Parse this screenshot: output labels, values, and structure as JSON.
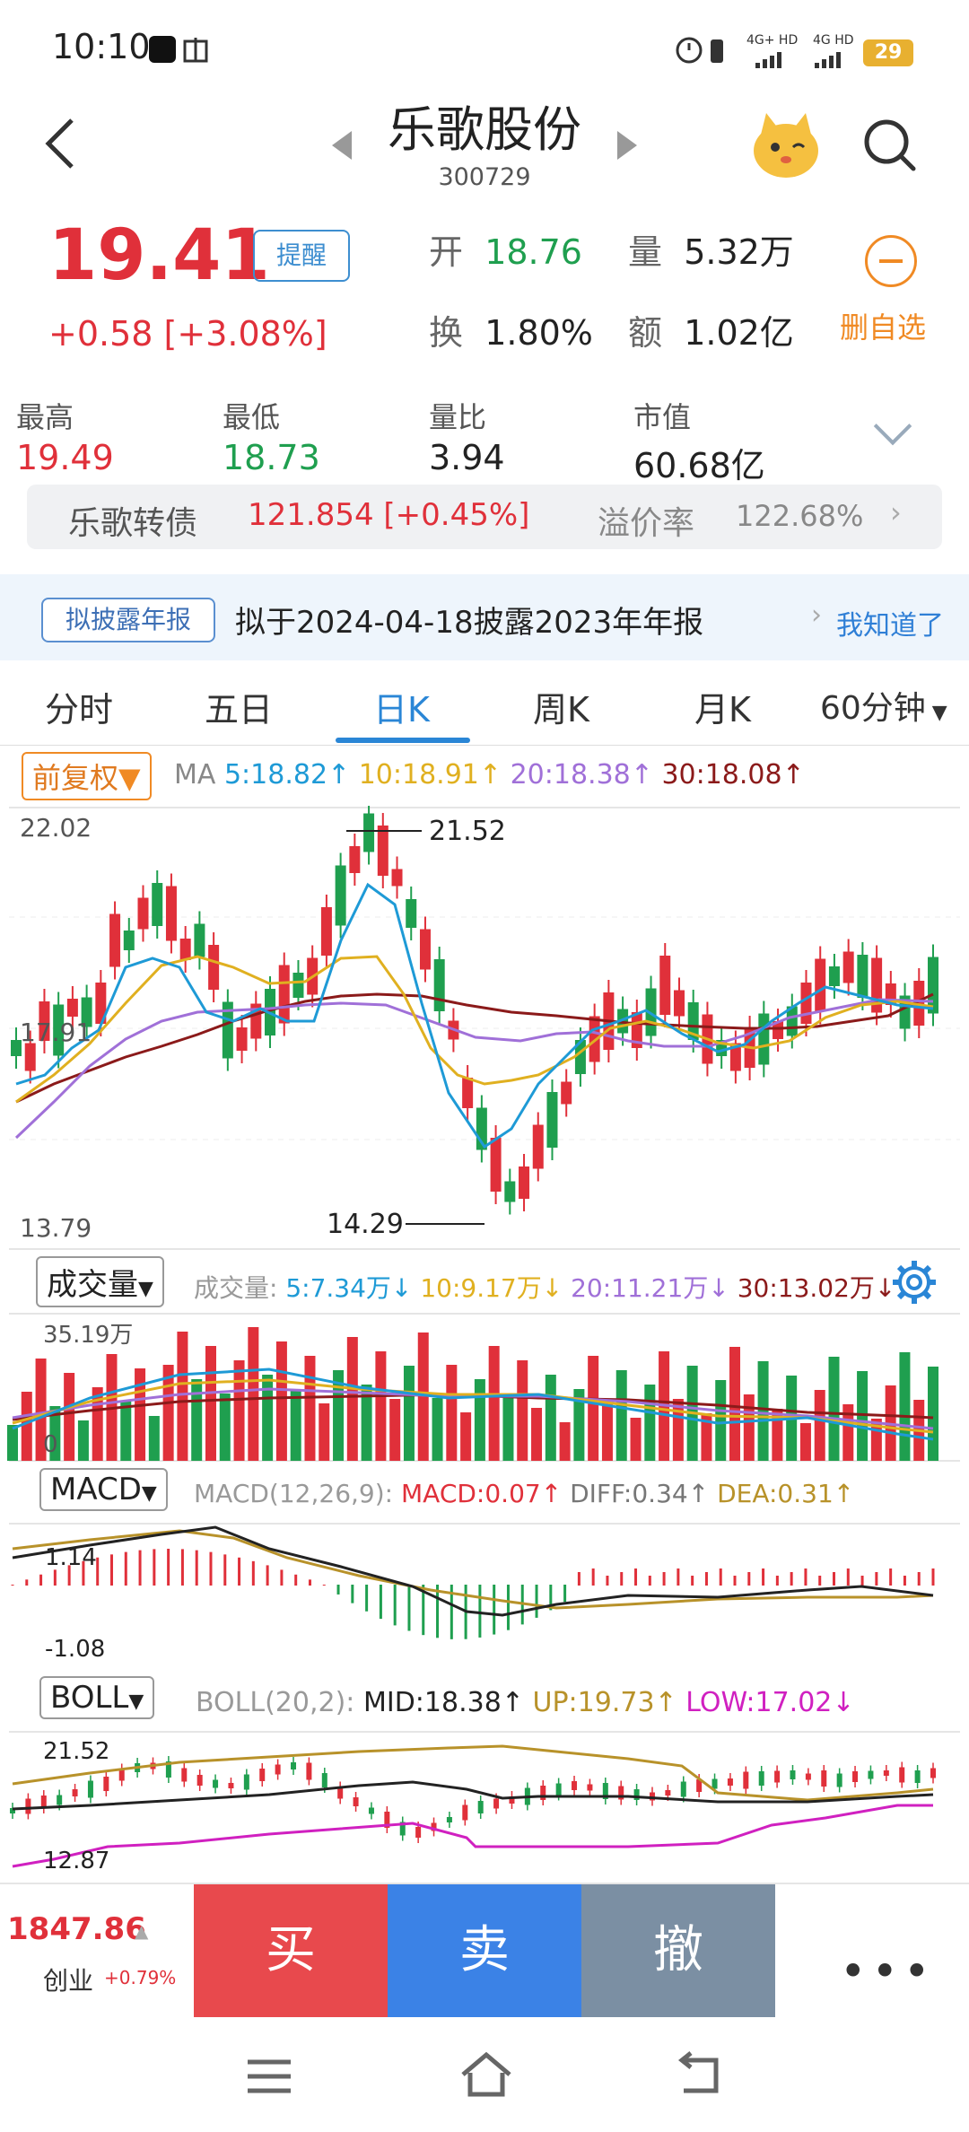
{
  "status_bar": {
    "time": "10:10",
    "network1": "4G+ HD",
    "network2": "4G HD",
    "battery": "29"
  },
  "header": {
    "title": "乐歌股份",
    "code": "300729"
  },
  "quote": {
    "price": "19.41",
    "remind_label": "提醒",
    "change": "+0.58  [+3.08%]",
    "open_label": "开",
    "open_value": "18.76",
    "volume_label": "量",
    "volume_value": "5.32万",
    "turnover_label": "换",
    "turnover_value": "1.80%",
    "amount_label": "额",
    "amount_value": "1.02亿",
    "remove_label": "删自选"
  },
  "stats": [
    {
      "label": "最高",
      "value": "19.49",
      "tone": "red"
    },
    {
      "label": "最低",
      "value": "18.73",
      "tone": "green"
    },
    {
      "label": "量比",
      "value": "3.94",
      "tone": "plain"
    },
    {
      "label": "市值",
      "value": "60.68亿",
      "tone": "plain"
    }
  ],
  "convertible": {
    "name": "乐歌转债",
    "price_change": "121.854  [+0.45%]",
    "premium_label": "溢价率",
    "premium_value": "122.68%"
  },
  "notice": {
    "badge": "拟披露年报",
    "text": "拟于2024-04-18披露2023年年报",
    "ack": "我知道了"
  },
  "tabs": [
    "分时",
    "五日",
    "日K",
    "周K",
    "月K",
    "60分钟"
  ],
  "active_tab": 2,
  "kline": {
    "adjust_label": "前复权",
    "ma_prefix": "MA",
    "ma": [
      {
        "text": "5:18.82↑",
        "color": "#1e9ad6"
      },
      {
        "text": "10:18.91↑",
        "color": "#e0b020"
      },
      {
        "text": "20:18.38↑",
        "color": "#a070d8"
      },
      {
        "text": "30:18.08↑",
        "color": "#8b1a1a"
      }
    ],
    "ymax": "22.02",
    "ymid": "17.91",
    "ymin": "13.79",
    "high_mark": "21.52",
    "low_mark": "14.29"
  },
  "volume": {
    "selector": "成交量",
    "prefix": "成交量:",
    "items": [
      {
        "text": "5:7.34万↓",
        "color": "#1e9ad6"
      },
      {
        "text": "10:9.17万↓",
        "color": "#e0b020"
      },
      {
        "text": "20:11.21万↓",
        "color": "#a070d8"
      },
      {
        "text": "30:13.02万↓",
        "color": "#8b1a1a"
      }
    ],
    "ymax": "35.19万",
    "ymin": "0"
  },
  "macd": {
    "selector": "MACD",
    "params": "MACD(12,26,9):",
    "items": [
      {
        "text": "MACD:0.07↑",
        "color": "#e0303a"
      },
      {
        "text": "DIFF:0.34↑",
        "color": "#777"
      },
      {
        "text": "DEA:0.31↑",
        "color": "#b8922a"
      }
    ],
    "ymax": "1.14",
    "ymin": "-1.08"
  },
  "boll": {
    "selector": "BOLL",
    "params": "BOLL(20,2):",
    "items": [
      {
        "text": "MID:18.38↑",
        "color": "#222"
      },
      {
        "text": "UP:19.73↑",
        "color": "#b8922a"
      },
      {
        "text": "LOW:17.02↓",
        "color": "#d020c0"
      }
    ],
    "ymax": "21.52",
    "ymin": "12.87"
  },
  "bottom": {
    "index_value": "1847.86",
    "index_name": "创业",
    "index_pct": "+0.79%",
    "buy": "买",
    "sell": "卖",
    "cancel": "撤",
    "more": "•••"
  },
  "colors": {
    "up": "#e0303a",
    "down": "#1f9f4f",
    "buy_btn": "#e8494d",
    "sell_btn": "#3b82e6",
    "cancel_btn": "#7b8fa3",
    "accent": "#2a86d6"
  }
}
